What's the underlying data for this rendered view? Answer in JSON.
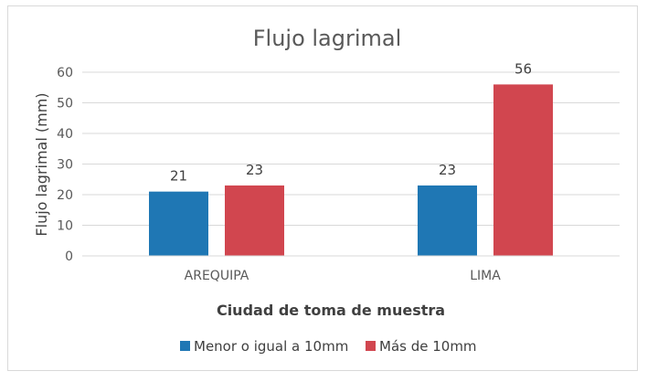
{
  "chart_data": {
    "type": "bar",
    "title": "Flujo lagrimal",
    "xlabel": "Ciudad de toma de muestra",
    "ylabel": "Flujo lagrimal (mm)",
    "categories": [
      "AREQUIPA",
      "LIMA"
    ],
    "series": [
      {
        "name": "Menor o igual a 10mm",
        "values": [
          21,
          23
        ],
        "color": "#1f77b4"
      },
      {
        "name": "Más de 10mm",
        "values": [
          23,
          56
        ],
        "color": "#d1464f"
      }
    ],
    "ylim": [
      0,
      60
    ],
    "yticks": [
      0,
      10,
      20,
      30,
      40,
      50,
      60
    ],
    "grid": true,
    "legend_position": "bottom"
  }
}
